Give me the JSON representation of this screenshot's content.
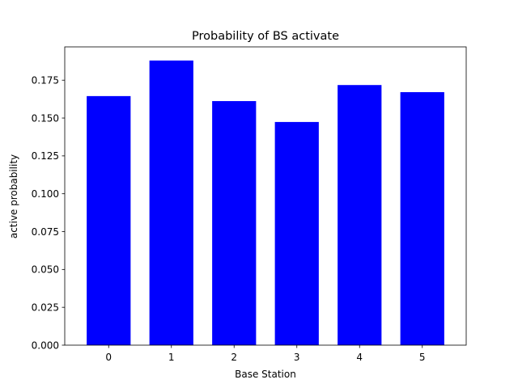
{
  "chart_data": {
    "type": "bar",
    "title": "Probability of BS activate",
    "xlabel": "Base Station",
    "ylabel": "active probability",
    "categories": [
      "0",
      "1",
      "2",
      "3",
      "4",
      "5"
    ],
    "values": [
      0.1645,
      0.188,
      0.1612,
      0.1474,
      0.1718,
      0.1671
    ],
    "ylim": [
      0,
      0.197
    ],
    "yticks": [
      0.0,
      0.025,
      0.05,
      0.075,
      0.1,
      0.125,
      0.15,
      0.175
    ],
    "ytick_labels": [
      "0.000",
      "0.025",
      "0.050",
      "0.075",
      "0.100",
      "0.125",
      "0.150",
      "0.175"
    ],
    "bar_color": "#0000ff",
    "grid": false,
    "legend": "none"
  }
}
